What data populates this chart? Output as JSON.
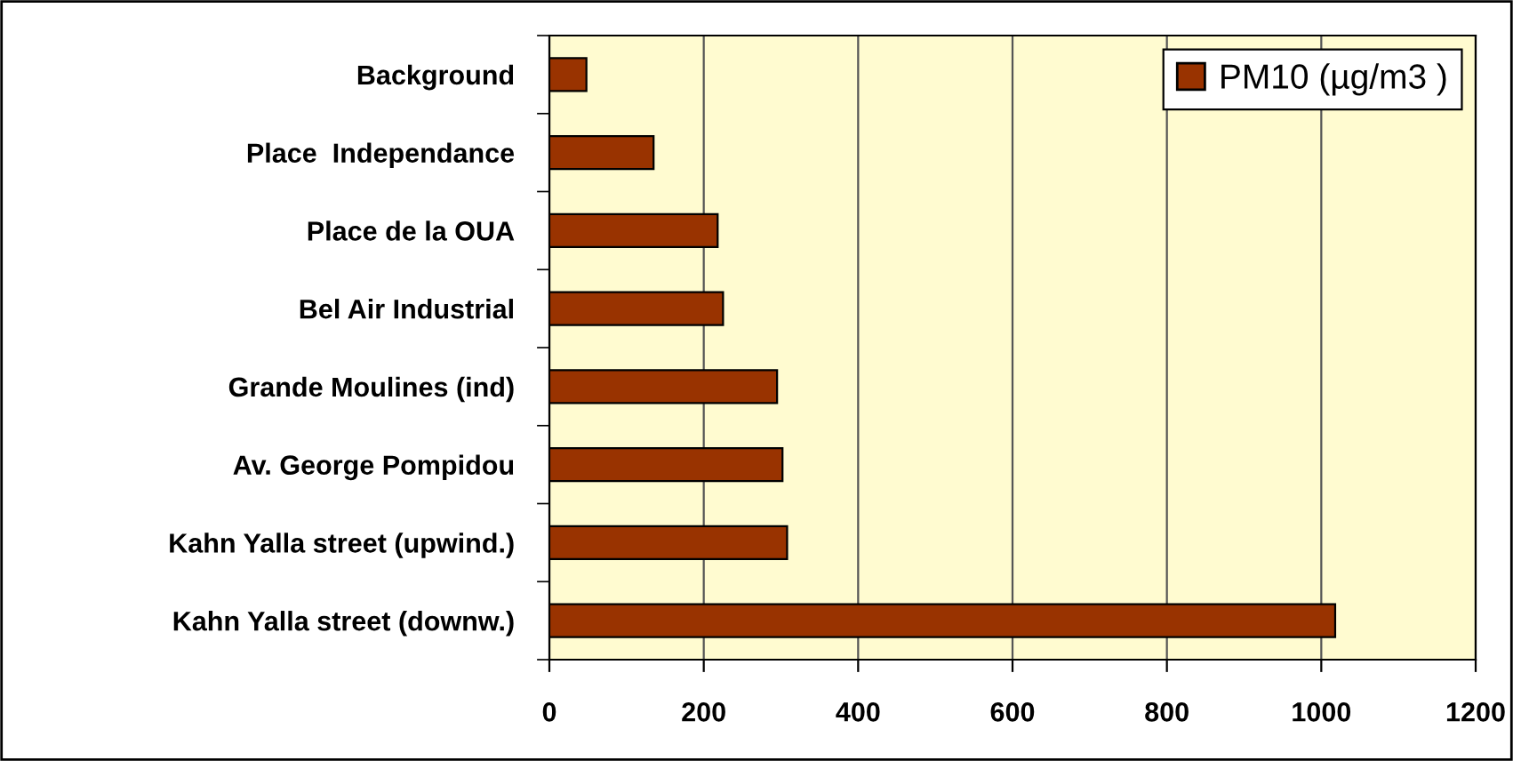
{
  "chart_data": {
    "type": "bar",
    "orientation": "horizontal",
    "categories": [
      "Background",
      "Place  Independance",
      "Place de la OUA",
      "Bel Air Industrial",
      "Grande Moulines (ind)",
      "Av. George Pompidou",
      "Kahn Yalla street (upwind.)",
      "Kahn Yalla street (downw.)"
    ],
    "series": [
      {
        "name": "PM10 (µg/m3 )",
        "color": "#993300",
        "values": [
          48,
          135,
          218,
          225,
          295,
          302,
          308,
          1018
        ]
      }
    ],
    "xlim": [
      0,
      1200
    ],
    "xticks": [
      0,
      200,
      400,
      600,
      800,
      1000,
      1200
    ],
    "grid": "x",
    "legend": "top right"
  }
}
